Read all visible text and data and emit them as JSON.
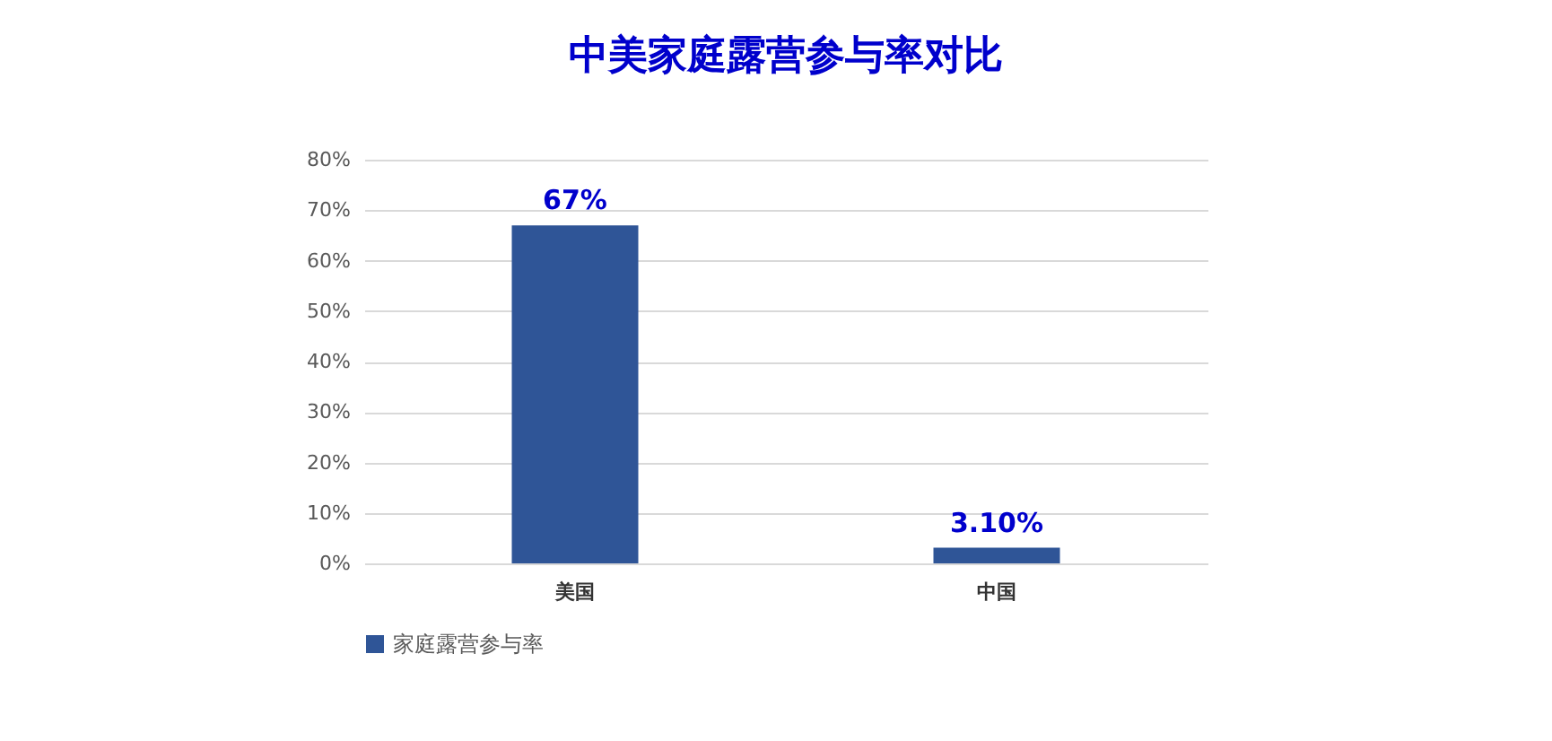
{
  "chart_data": {
    "type": "bar",
    "title": "中美家庭露营参与率对比",
    "categories": [
      "美国",
      "中国"
    ],
    "series": [
      {
        "name": "家庭露营参与率",
        "color": "#2f5597",
        "values": [
          67,
          3.1
        ],
        "value_labels": [
          "67%",
          "3.10%"
        ]
      }
    ],
    "ylim": [
      0,
      80
    ],
    "yticks": [
      {
        "value": 0,
        "label": "0%"
      },
      {
        "value": 10,
        "label": "10%"
      },
      {
        "value": 20,
        "label": "20%"
      },
      {
        "value": 30,
        "label": "30%"
      },
      {
        "value": 40,
        "label": "40%"
      },
      {
        "value": 50,
        "label": "50%"
      },
      {
        "value": 60,
        "label": "60%"
      },
      {
        "value": 70,
        "label": "70%"
      },
      {
        "value": 80,
        "label": "80%"
      }
    ],
    "grid": "y",
    "legend": "bottom"
  }
}
